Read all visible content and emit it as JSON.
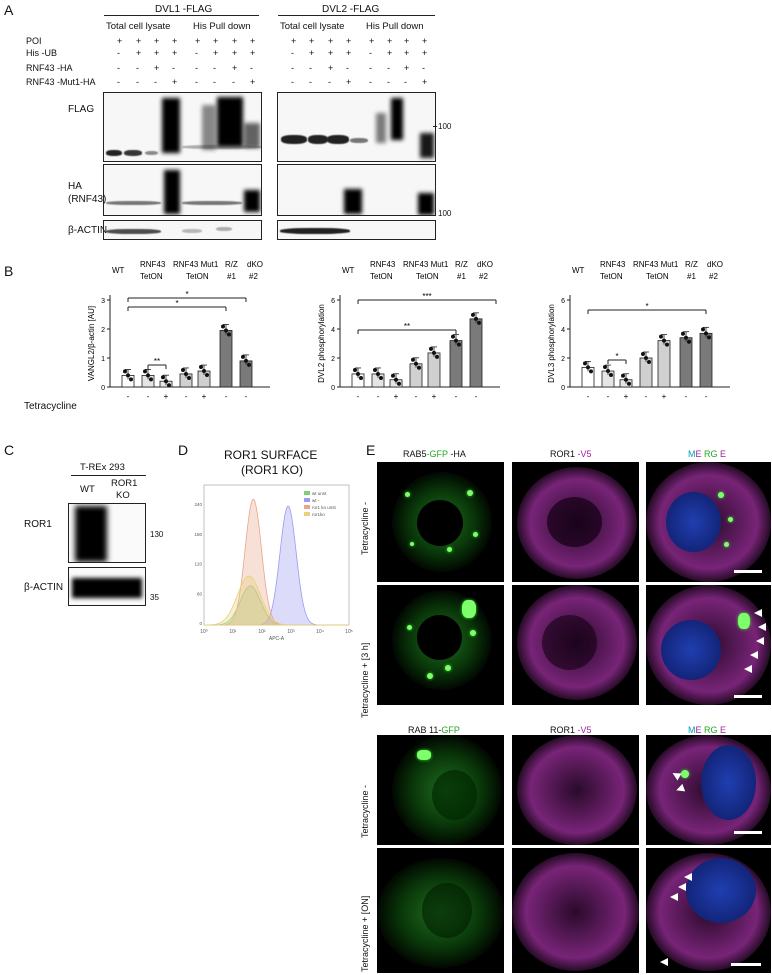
{
  "panels": {
    "A": "A",
    "B": "B",
    "C": "C",
    "D": "D",
    "E": "E"
  },
  "panelA": {
    "group1_title": "DVL1 -FLAG",
    "group2_title": "DVL2 -FLAG",
    "sub_total": "Total cell lysate",
    "sub_pull": "His Pull down",
    "row_labels": [
      "POI",
      "His -UB",
      "RNF43  -HA",
      "RNF43  -Mut1-HA"
    ],
    "signs": [
      [
        "+",
        "+",
        "+",
        "+",
        "+",
        "+",
        "+",
        "+"
      ],
      [
        "-",
        "+",
        "+",
        "+",
        "-",
        "+",
        "+",
        "+"
      ],
      [
        "-",
        "-",
        "+",
        "-",
        "-",
        "-",
        "+",
        "-"
      ],
      [
        "-",
        "-",
        "-",
        "+",
        "-",
        "-",
        "-",
        "+"
      ]
    ],
    "blot_flag": "FLAG",
    "blot_ha": "HA",
    "blot_ha_sub": "(RNF43)",
    "blot_actin": "β-ACTIN",
    "mw_100a": "100",
    "mw_100b": "100"
  },
  "panelB": {
    "tetracycline_label": "Tetracycline",
    "col_headers": [
      "WT",
      "RNF43\nTetON",
      "RNF43 Mut1\nTetON",
      "R/Z dKO\n#1  #2"
    ],
    "h_wt": "WT",
    "h_rnf43": "RNF43",
    "h_tet": "TetON",
    "h_mut": "RNF43 Mut1",
    "h_rz": "R/Z",
    "h_dko": "dKO",
    "h_n1": "#1",
    "h_n2": "#2",
    "tet_signs": [
      "-",
      "-",
      "+",
      "-",
      "+",
      "-",
      "-"
    ],
    "sig_star": "*",
    "sig_2star": "**",
    "sig_3star": "***"
  },
  "chart_data": [
    {
      "type": "bar",
      "categories": [
        "WT",
        "RNF43 TetON -",
        "RNF43 TetON +",
        "RNF43 Mut1 TetON -",
        "RNF43 Mut1 TetON +",
        "R/Z dKO #1",
        "R/Z dKO #2"
      ],
      "values": [
        0.4,
        0.4,
        0.2,
        0.45,
        0.55,
        1.95,
        0.9
      ],
      "ylabel": "VANGL2/β-actin [AU]",
      "ylim": [
        0,
        3
      ],
      "yticks": [
        "0",
        "1",
        "2",
        "3"
      ],
      "fills": [
        "#ffffff",
        "#e5e5e5",
        "#e5e5e5",
        "#d0d0d0",
        "#d0d0d0",
        "#7a7a7a",
        "#7a7a7a"
      ]
    },
    {
      "type": "bar",
      "categories": [
        "WT",
        "RNF43 TetON -",
        "RNF43 TetON +",
        "RNF43 Mut1 TetON -",
        "RNF43 Mut1 TetON +",
        "R/Z dKO #1",
        "R/Z dKO #2"
      ],
      "values": [
        0.9,
        0.9,
        0.5,
        1.6,
        2.35,
        3.2,
        4.7
      ],
      "ylabel": "DVL2 phosphorylation",
      "ylim": [
        0,
        6
      ],
      "yticks": [
        "0",
        "2",
        "4",
        "6"
      ],
      "fills": [
        "#ffffff",
        "#e5e5e5",
        "#e5e5e5",
        "#d0d0d0",
        "#d0d0d0",
        "#7a7a7a",
        "#7a7a7a"
      ]
    },
    {
      "type": "bar",
      "categories": [
        "WT",
        "RNF43 TetON -",
        "RNF43 TetON +",
        "RNF43 Mut1 TetON -",
        "RNF43 Mut1 TetON +",
        "R/Z dKO #1",
        "R/Z dKO #2"
      ],
      "values": [
        1.35,
        1.1,
        0.5,
        2.0,
        3.2,
        3.4,
        3.7
      ],
      "ylabel": "DVL3 phosphorylation",
      "ylim": [
        0,
        6
      ],
      "yticks": [
        "0",
        "2",
        "4",
        "6"
      ],
      "fills": [
        "#ffffff",
        "#e5e5e5",
        "#e5e5e5",
        "#d0d0d0",
        "#d0d0d0",
        "#7a7a7a",
        "#7a7a7a"
      ]
    }
  ],
  "panelC": {
    "title": "T-REx 293",
    "wt": "WT",
    "ror1": "ROR1",
    "ko": "KO",
    "blot1": "ROR1",
    "blot2": "β-ACTIN",
    "mw130": "130",
    "mw35": "35"
  },
  "panelD": {
    "title": "ROR1 SURFACE",
    "subtitle": "(ROR1 KO)",
    "legend": [
      "wt unst",
      "wt -",
      "ror1 ko unst",
      "ror1ko"
    ],
    "legend_colors": [
      "#7ccf7c",
      "#9a9af0",
      "#e8a58a",
      "#e6d27a"
    ],
    "xlabel": "APC-A",
    "xticks": [
      "10⁰",
      "10¹",
      "10²",
      "10³",
      "10⁴",
      "10⁵"
    ],
    "yticks": [
      "0",
      "60",
      "120",
      "180",
      "240"
    ]
  },
  "panelE": {
    "top_c1": "RAB5",
    "top_c1_g": "-GFP",
    "top_c1_h": " -HA",
    "top_c2": "ROR1",
    "top_c2_v": " -V5",
    "merge_m": "M",
    "merge_e": "E",
    "merge_rg": "RG",
    "merge_e2": "E",
    "bot_c1": "RAB 11-",
    "bot_c1_g": "GFP",
    "bot_c2": "ROR1",
    "bot_c2_v": " -V5",
    "row1": "Tetracycline  -",
    "row2": "Tetracycline  +  [3 h]",
    "row3": "Tetracycline  -",
    "row4": "Tetracycline  +   [ON]"
  },
  "colors": {
    "green": "#22aa22",
    "magenta": "#a020a0",
    "cyan": "#00a0b0"
  }
}
